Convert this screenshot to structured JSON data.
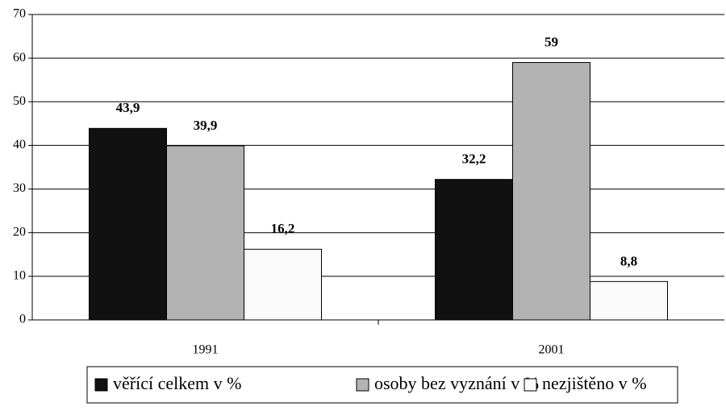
{
  "chart_data": {
    "type": "bar",
    "categories": [
      "1991",
      "2001"
    ],
    "series": [
      {
        "name": "věřící celkem v %",
        "color": "#111111",
        "values": [
          43.9,
          32.2
        ],
        "value_labels": [
          "43,9",
          "32,2"
        ]
      },
      {
        "name": "osoby bez vyznání v %",
        "color": "#b3b3b3",
        "values": [
          39.9,
          59
        ],
        "value_labels": [
          "39,9",
          "59"
        ]
      },
      {
        "name": "nezjištěno v %",
        "color": "#fafafa",
        "values": [
          16.2,
          8.8
        ],
        "value_labels": [
          "16,2",
          "8,8"
        ]
      }
    ],
    "ylim": [
      0,
      70
    ],
    "yticks": [
      0,
      10,
      20,
      30,
      40,
      50,
      60,
      70
    ],
    "grid": true,
    "legend": "bottom"
  }
}
